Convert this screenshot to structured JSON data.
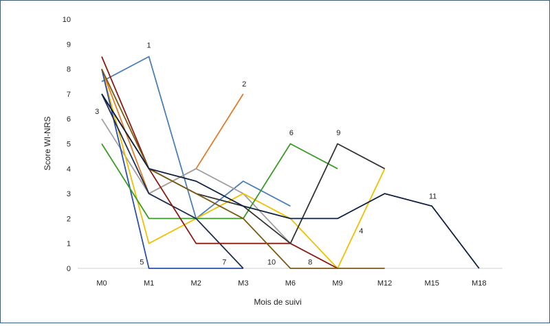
{
  "chart_data": {
    "type": "line",
    "title": "",
    "xlabel": "Mois de suivi",
    "ylabel": "Score WI-NRS",
    "ylim": [
      0,
      10
    ],
    "yticks": [
      0,
      1,
      2,
      3,
      4,
      5,
      6,
      7,
      8,
      9,
      10
    ],
    "grid": false,
    "legend": "none",
    "categories": [
      "M0",
      "M1",
      "M2",
      "M3",
      "M6",
      "M9",
      "M12",
      "M15",
      "M18"
    ],
    "series": [
      {
        "name": "1",
        "color": "#4a7fb5",
        "values": [
          7.5,
          8.5,
          2,
          3.5,
          2.5,
          null,
          null,
          null,
          null
        ],
        "label_at": 1
      },
      {
        "name": "2",
        "color": "#e07b2a",
        "values": [
          8,
          3,
          4,
          7,
          null,
          null,
          null,
          null,
          null
        ],
        "label_at": 3
      },
      {
        "name": "3",
        "color": "#a0a0a0",
        "values": [
          6,
          3,
          4,
          3,
          1,
          null,
          null,
          null,
          null
        ],
        "label_at": 0
      },
      {
        "name": "4",
        "color": "#f0c000",
        "values": [
          8,
          1,
          2,
          3,
          2,
          0,
          4,
          null,
          null
        ],
        "label_at": 5.6
      },
      {
        "name": "5",
        "color": "#2b4fae",
        "values": [
          8,
          0,
          0,
          0,
          null,
          null,
          null,
          null,
          null
        ],
        "label_at": 0.85
      },
      {
        "name": "6",
        "color": "#3a9a26",
        "values": [
          5,
          2,
          2,
          2,
          5,
          4,
          null,
          null,
          null
        ],
        "label_at": 4
      },
      {
        "name": "7",
        "color": "#1f2d4f",
        "values": [
          7,
          3,
          2,
          0,
          null,
          null,
          null,
          null,
          null
        ],
        "label_at": 2.6
      },
      {
        "name": "8",
        "color": "#8b1a10",
        "values": [
          8.5,
          4,
          1,
          1,
          1,
          0,
          null,
          null,
          null
        ],
        "label_at": 4.4
      },
      {
        "name": "9",
        "color": "#333333",
        "values": [
          7,
          4,
          3,
          2.5,
          1,
          5,
          4,
          null,
          null
        ],
        "label_at": 5
      },
      {
        "name": "10",
        "color": "#7a5a10",
        "values": [
          8,
          4,
          3,
          2,
          0,
          0,
          0,
          null,
          null
        ],
        "label_at": 3.6
      },
      {
        "name": "11",
        "color": "#10203f",
        "values": [
          7,
          4,
          3.5,
          2.5,
          2,
          2,
          3,
          2.5,
          0
        ],
        "label_at": 7
      }
    ],
    "series_labels": [
      {
        "text": "1",
        "x": 1,
        "y": 8.85
      },
      {
        "text": "2",
        "x": 3.02,
        "y": 7.3
      },
      {
        "text": "3",
        "x": -0.1,
        "y": 6.2
      },
      {
        "text": "4",
        "x": 5.5,
        "y": 1.4
      },
      {
        "text": "5",
        "x": 0.85,
        "y": 0.15
      },
      {
        "text": "6",
        "x": 4.02,
        "y": 5.35
      },
      {
        "text": "7",
        "x": 2.6,
        "y": 0.15
      },
      {
        "text": "8",
        "x": 4.42,
        "y": 0.15
      },
      {
        "text": "9",
        "x": 5.02,
        "y": 5.35
      },
      {
        "text": "10",
        "x": 3.6,
        "y": 0.15
      },
      {
        "text": "11",
        "x": 7.02,
        "y": 2.8
      }
    ]
  }
}
